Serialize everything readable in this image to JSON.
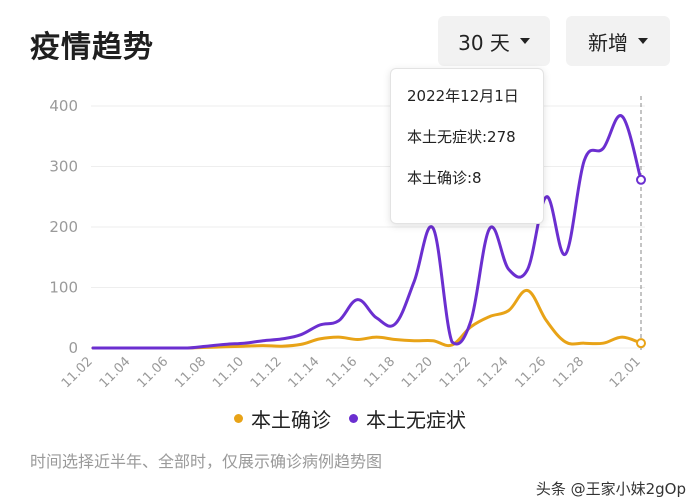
{
  "header": {
    "title": "疫情趋势"
  },
  "controls": {
    "range_label": "30 天",
    "metric_label": "新增"
  },
  "tooltip": {
    "date": "2022年12月1日",
    "asymptomatic_line": "本土无症状:278",
    "confirmed_line": "本土确诊:8"
  },
  "legend": {
    "confirmed": "本土确诊",
    "asymptomatic": "本土无症状"
  },
  "footnote": "时间选择近半年、全部时，仅展示确诊病例趋势图",
  "watermark": "头条 @王家小妹2gOp",
  "colors": {
    "confirmed": "#e8a317",
    "asymptomatic": "#6b2fd0",
    "grid": "#eeeeee",
    "axis_text": "#9a9a9a"
  },
  "chart_data": {
    "type": "line",
    "x": [
      "11.02",
      "11.03",
      "11.04",
      "11.05",
      "11.06",
      "11.07",
      "11.08",
      "11.09",
      "11.10",
      "11.11",
      "11.12",
      "11.13",
      "11.14",
      "11.15",
      "11.16",
      "11.17",
      "11.18",
      "11.19",
      "11.20",
      "11.21",
      "11.22",
      "11.23",
      "11.24",
      "11.25",
      "11.26",
      "11.27",
      "11.28",
      "11.29",
      "11.30",
      "12.01"
    ],
    "xticks": [
      "11.02",
      "11.04",
      "11.06",
      "11.08",
      "11.10",
      "11.12",
      "11.14",
      "11.16",
      "11.18",
      "11.20",
      "11.22",
      "11.24",
      "11.26",
      "11.28",
      "12.01"
    ],
    "yticks": [
      0,
      100,
      200,
      300,
      400
    ],
    "ylim": [
      0,
      400
    ],
    "series": [
      {
        "name": "本土确诊",
        "key": "confirmed",
        "values": [
          0,
          0,
          0,
          0,
          0,
          0,
          1,
          2,
          3,
          4,
          3,
          6,
          15,
          18,
          14,
          18,
          14,
          12,
          12,
          5,
          35,
          52,
          62,
          95,
          45,
          10,
          8,
          8,
          18,
          8
        ]
      },
      {
        "name": "本土无症状",
        "key": "asymptomatic",
        "values": [
          0,
          0,
          0,
          0,
          0,
          0,
          3,
          6,
          8,
          12,
          15,
          22,
          38,
          45,
          80,
          50,
          40,
          110,
          198,
          10,
          45,
          198,
          130,
          130,
          250,
          155,
          310,
          330,
          383,
          278
        ]
      }
    ],
    "highlight_index": 29,
    "grid": true,
    "legend_position": "bottom"
  }
}
